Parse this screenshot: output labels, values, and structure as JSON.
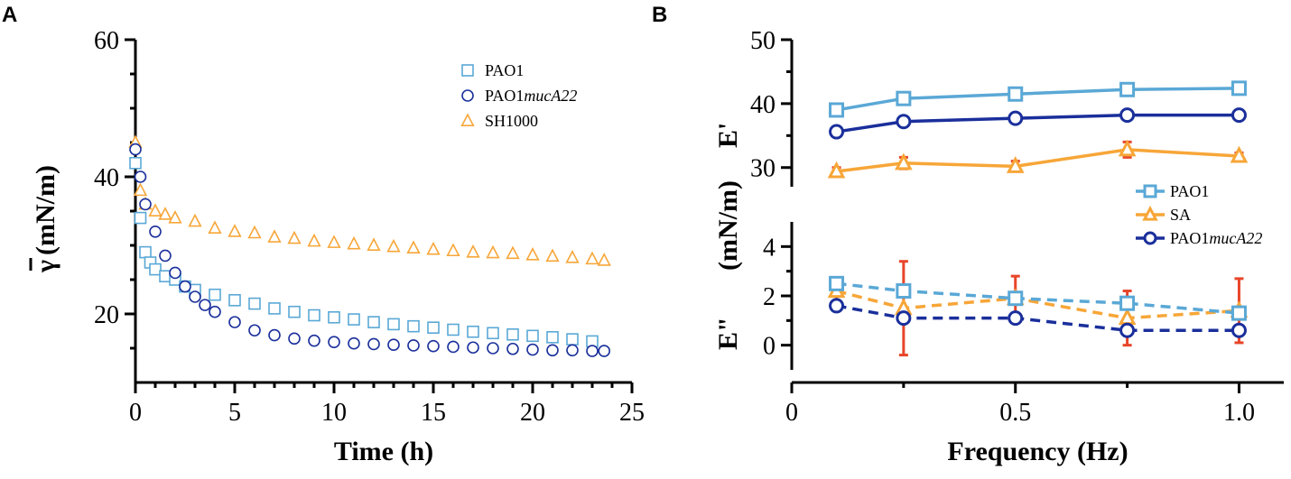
{
  "colors": {
    "pao1": "#5aa8d6",
    "muca22": "#1a2f9b",
    "sh1000": "#f7a638",
    "errorbar": "#e8452a"
  },
  "chart_data": [
    {
      "panel": "A",
      "type": "scatter",
      "title": "",
      "xlabel": "Time (h)",
      "ylabel": "γ̄ (mN/m)",
      "ylabel_symbol": "γ",
      "ylabel_units": "(mN/m)",
      "xlim": [
        0,
        25
      ],
      "ylim": [
        10,
        60
      ],
      "xticks": [
        0,
        5,
        10,
        15,
        20,
        25
      ],
      "yticks": [
        20,
        40,
        60
      ],
      "legend_position": "top-right",
      "series": [
        {
          "name": "PAO1",
          "name_parts": [
            "PAO1",
            ""
          ],
          "marker": "square",
          "color_key": "pao1",
          "x": [
            0,
            0.25,
            0.5,
            0.75,
            1,
            1.5,
            2,
            2.5,
            3,
            4,
            5,
            6,
            7,
            8,
            9,
            10,
            11,
            12,
            13,
            14,
            15,
            16,
            17,
            18,
            19,
            20,
            21,
            22,
            23
          ],
          "y": [
            42,
            34,
            29,
            27.5,
            26.5,
            25.5,
            25,
            24,
            23.5,
            22.8,
            22,
            21.5,
            20.8,
            20.3,
            19.8,
            19.5,
            19.2,
            18.8,
            18.5,
            18.2,
            18,
            17.7,
            17.4,
            17.2,
            17,
            16.8,
            16.6,
            16.3,
            16
          ]
        },
        {
          "name": "PAO1mucA22",
          "name_parts": [
            "PAO1",
            "mucA22"
          ],
          "marker": "circle",
          "color_key": "muca22",
          "x": [
            0,
            0.25,
            0.5,
            1,
            1.5,
            2,
            2.5,
            3,
            3.5,
            4,
            5,
            6,
            7,
            8,
            9,
            10,
            11,
            12,
            13,
            14,
            15,
            16,
            17,
            18,
            19,
            20,
            21,
            22,
            23,
            23.6
          ],
          "y": [
            44,
            40,
            36,
            32,
            28.5,
            26,
            24,
            22.5,
            21.3,
            20.3,
            18.8,
            17.6,
            16.9,
            16.4,
            16.1,
            15.9,
            15.7,
            15.6,
            15.5,
            15.4,
            15.3,
            15.2,
            15.1,
            15,
            14.9,
            14.8,
            14.7,
            14.7,
            14.6,
            14.6
          ]
        },
        {
          "name": "SH1000",
          "name_parts": [
            "SH1000",
            ""
          ],
          "marker": "triangle",
          "color_key": "sh1000",
          "x": [
            0,
            0.25,
            0.5,
            1,
            1.5,
            2,
            3,
            4,
            5,
            6,
            7,
            8,
            9,
            10,
            11,
            12,
            13,
            14,
            15,
            16,
            17,
            18,
            19,
            20,
            21,
            22,
            23,
            23.6
          ],
          "y": [
            45,
            38,
            36,
            35,
            34.5,
            34,
            33.5,
            32.5,
            32,
            31.8,
            31.2,
            31,
            30.6,
            30.4,
            30.2,
            30,
            29.8,
            29.6,
            29.4,
            29.2,
            29,
            28.9,
            28.8,
            28.6,
            28.4,
            28.2,
            28,
            27.8
          ]
        }
      ]
    },
    {
      "panel": "B",
      "type": "line",
      "title": "",
      "xlabel": "Frequency (Hz)",
      "ylabel_parts": [
        "E\"",
        "(mN/m)",
        "E'"
      ],
      "x": [
        0.1,
        0.25,
        0.5,
        0.75,
        1.0
      ],
      "xlim": [
        0,
        1.1
      ],
      "xticks": [
        0,
        0.5,
        1.0
      ],
      "xtick_labels": [
        "0",
        "0.5",
        "1.0"
      ],
      "upper": {
        "quantity": "E'",
        "ylim": [
          27,
          50
        ],
        "yticks": [
          30,
          40,
          50
        ],
        "series": [
          {
            "name": "PAO1",
            "marker": "square",
            "color_key": "pao1",
            "values": [
              39.0,
              40.8,
              41.5,
              42.2,
              42.4
            ],
            "errors": [
              0,
              0,
              0,
              0,
              0
            ]
          },
          {
            "name": "PAO1mucA22",
            "marker": "circle",
            "color_key": "muca22",
            "values": [
              35.6,
              37.2,
              37.7,
              38.2,
              38.2
            ],
            "errors": [
              0,
              0,
              0,
              0,
              0
            ]
          },
          {
            "name": "SA",
            "marker": "triangle",
            "color_key": "sh1000",
            "values": [
              29.4,
              30.7,
              30.2,
              32.8,
              31.8
            ],
            "errors": [
              0.6,
              0.9,
              0.8,
              1.2,
              0.5
            ]
          }
        ]
      },
      "lower": {
        "quantity": "E\"",
        "ylim": [
          -1,
          5
        ],
        "yticks": [
          0,
          2,
          4
        ],
        "dashed": true,
        "series": [
          {
            "name": "PAO1",
            "marker": "square",
            "color_key": "pao1",
            "values": [
              2.5,
              2.2,
              1.9,
              1.7,
              1.3
            ],
            "errors": [
              0,
              0,
              0,
              0,
              0
            ]
          },
          {
            "name": "SA",
            "marker": "triangle",
            "color_key": "sh1000",
            "values": [
              2.2,
              1.5,
              1.9,
              1.1,
              1.4
            ],
            "errors": [
              0.5,
              1.9,
              0.9,
              1.1,
              1.3
            ]
          },
          {
            "name": "PAO1mucA22",
            "marker": "circle",
            "color_key": "muca22",
            "values": [
              1.6,
              1.1,
              1.1,
              0.6,
              0.6
            ],
            "errors": [
              0,
              0,
              0,
              0,
              0
            ]
          }
        ]
      },
      "legend_position": "right-middle",
      "legend": [
        {
          "name_parts": [
            "PAO1",
            ""
          ],
          "marker": "square",
          "color_key": "pao1"
        },
        {
          "name_parts": [
            "SA",
            ""
          ],
          "marker": "triangle",
          "color_key": "sh1000"
        },
        {
          "name_parts": [
            "PAO1",
            "mucA22"
          ],
          "marker": "circle",
          "color_key": "muca22"
        }
      ]
    }
  ]
}
